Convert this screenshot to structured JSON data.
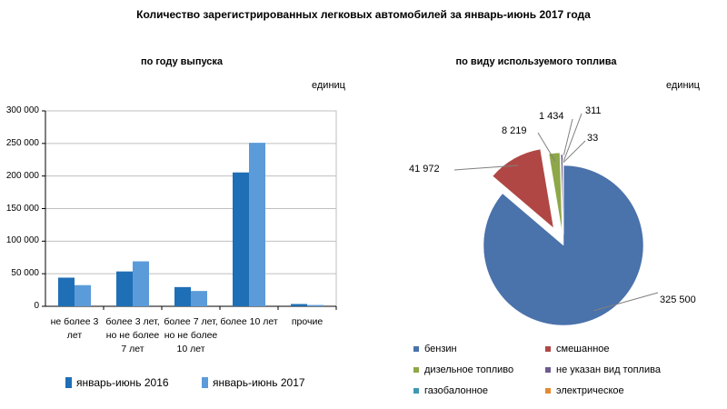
{
  "title": "Количество зарегистрированных  легковых автомобилей за январь-июнь 2017 года",
  "chart_data": [
    {
      "type": "bar",
      "title": "по году выпуска",
      "unit": "единиц",
      "categories": [
        [
          "не более 3",
          "лет"
        ],
        [
          "более 3 лет,",
          "но не более",
          "7 лет"
        ],
        [
          "более 7 лет,",
          "но не более",
          "10 лет"
        ],
        [
          "более 10 лет"
        ],
        [
          "прочие"
        ]
      ],
      "series": [
        {
          "name": "январь-июнь 2016",
          "color": "#1f6fb6",
          "values": [
            44000,
            53500,
            29500,
            205500,
            3500
          ]
        },
        {
          "name": "январь-июнь 2017",
          "color": "#5b9bd9",
          "values": [
            32500,
            69000,
            23500,
            251000,
            2000
          ]
        }
      ],
      "ylim": [
        0,
        300000
      ],
      "yticks": [
        "0",
        "50 000",
        "100 000",
        "150 000",
        "200 000",
        "250 000",
        "300 000"
      ],
      "grid": true,
      "legend_position": "bottom"
    },
    {
      "type": "pie",
      "title": "по виду используемого  топлива",
      "unit": "единиц",
      "slices": [
        {
          "name": "бензин",
          "value": 325500,
          "label": "325 500",
          "color": "#4a72ab"
        },
        {
          "name": "смешанное",
          "value": 41972,
          "label": "41 972",
          "color": "#b04744"
        },
        {
          "name": "дизельное топливо",
          "value": 8219,
          "label": "8 219",
          "color": "#8ea748"
        },
        {
          "name": "не указан вид топлива",
          "value": 1434,
          "label": "1 434",
          "color": "#6d5a8f"
        },
        {
          "name": "газобалонное",
          "value": 311,
          "label": "311",
          "color": "#3f98b0"
        },
        {
          "name": "электрическое",
          "value": 33,
          "label": "33",
          "color": "#e58a30"
        }
      ],
      "legend_position": "bottom"
    }
  ]
}
